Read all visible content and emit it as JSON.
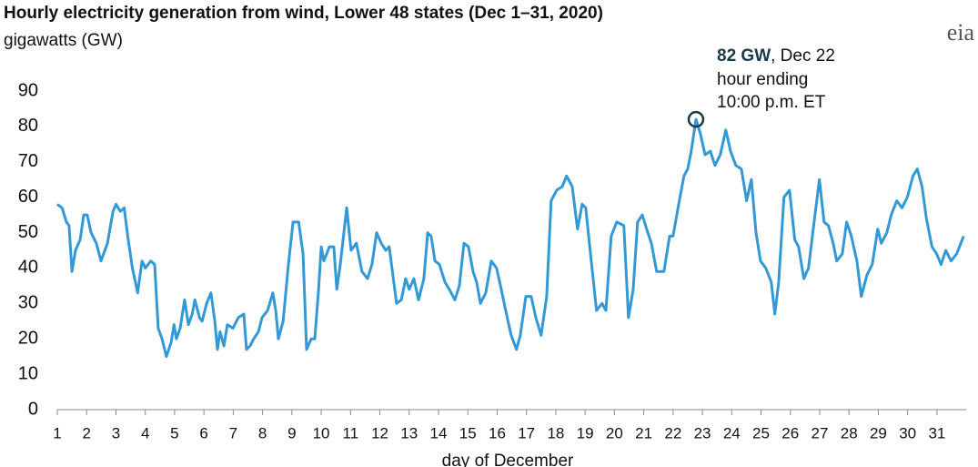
{
  "chart_data": {
    "type": "line",
    "title": "Hourly electricity generation from wind, Lower 48 states (Dec 1–31, 2020)",
    "y_axis_label": "gigawatts (GW)",
    "x_axis_label": "day of December",
    "logo": "eia",
    "color": "#3399d6",
    "xlim": [
      1,
      32
    ],
    "xticks": [
      1,
      2,
      3,
      4,
      5,
      6,
      7,
      8,
      9,
      10,
      11,
      12,
      13,
      14,
      15,
      16,
      17,
      18,
      19,
      20,
      21,
      22,
      23,
      24,
      25,
      26,
      27,
      28,
      29,
      30,
      31
    ],
    "ylim": [
      0,
      90
    ],
    "yticks": [
      0,
      10,
      20,
      30,
      40,
      50,
      60,
      70,
      80,
      90
    ],
    "annotation": {
      "x": 22.78,
      "y": 82,
      "label": "82 GW",
      "text": ", Dec 22",
      "lines": [
        "hour ending",
        "10:00 p.m. ET"
      ]
    },
    "x": [
      1.0,
      1.16,
      1.31,
      1.4,
      1.5,
      1.62,
      1.78,
      1.9,
      2.02,
      2.15,
      2.33,
      2.49,
      2.71,
      2.9,
      3.0,
      3.15,
      3.28,
      3.4,
      3.56,
      3.74,
      3.89,
      4.0,
      4.19,
      4.32,
      4.44,
      4.57,
      4.72,
      4.88,
      4.98,
      5.06,
      5.19,
      5.34,
      5.47,
      5.6,
      5.69,
      5.85,
      5.94,
      6.09,
      6.24,
      6.37,
      6.46,
      6.55,
      6.68,
      6.8,
      6.99,
      7.17,
      7.36,
      7.45,
      7.57,
      7.7,
      7.86,
      7.98,
      8.17,
      8.35,
      8.45,
      8.54,
      8.7,
      8.88,
      9.04,
      9.23,
      9.38,
      9.5,
      9.66,
      9.78,
      9.91,
      10.0,
      10.09,
      10.28,
      10.43,
      10.53,
      10.65,
      10.87,
      11.02,
      11.2,
      11.39,
      11.58,
      11.73,
      11.89,
      12.05,
      12.2,
      12.32,
      12.57,
      12.73,
      12.88,
      13.0,
      13.16,
      13.32,
      13.5,
      13.63,
      13.75,
      13.88,
      14.03,
      14.22,
      14.37,
      14.56,
      14.71,
      14.87,
      15.02,
      15.18,
      15.3,
      15.43,
      15.61,
      15.8,
      15.98,
      16.14,
      16.29,
      16.48,
      16.66,
      16.79,
      16.98,
      17.16,
      17.32,
      17.5,
      17.69,
      17.84,
      18.03,
      18.22,
      18.37,
      18.56,
      18.74,
      18.9,
      19.02,
      19.21,
      19.39,
      19.58,
      19.71,
      19.89,
      20.08,
      20.32,
      20.48,
      20.64,
      20.79,
      20.95,
      21.1,
      21.26,
      21.44,
      21.69,
      21.88,
      22.0,
      22.19,
      22.37,
      22.5,
      22.62,
      22.78,
      22.93,
      23.09,
      23.27,
      23.43,
      23.61,
      23.8,
      23.96,
      24.14,
      24.33,
      24.51,
      24.67,
      24.83,
      24.98,
      25.16,
      25.35,
      25.47,
      25.6,
      25.78,
      25.97,
      26.15,
      26.28,
      26.46,
      26.62,
      26.84,
      26.99,
      27.15,
      27.3,
      27.46,
      27.58,
      27.77,
      27.92,
      28.08,
      28.27,
      28.42,
      28.61,
      28.79,
      28.98,
      29.1,
      29.29,
      29.44,
      29.63,
      29.81,
      29.99,
      30.18,
      30.33,
      30.49,
      30.64,
      30.83,
      30.99,
      31.14,
      31.3,
      31.48,
      31.67,
      31.91
    ],
    "values": [
      58,
      57,
      53,
      52,
      39,
      45,
      48,
      55,
      55,
      50,
      47,
      42,
      47,
      56,
      58,
      56,
      57,
      49,
      40,
      33,
      42,
      40,
      42,
      41,
      23,
      20,
      15,
      19,
      24,
      20,
      23,
      31,
      24,
      27,
      31,
      26,
      25,
      30,
      33,
      25,
      17,
      22,
      18,
      24,
      23,
      26,
      27,
      17,
      18,
      20,
      22,
      26,
      28,
      33,
      28,
      20,
      25,
      41,
      53,
      53,
      44,
      17,
      20,
      20,
      34,
      46,
      42,
      46,
      46,
      34,
      41,
      57,
      45,
      47,
      39,
      37,
      41,
      50,
      47,
      45,
      46,
      30,
      31,
      37,
      34,
      37,
      31,
      37,
      50,
      49,
      42,
      41,
      36,
      34,
      31,
      35,
      47,
      46,
      39,
      36,
      30,
      33,
      42,
      40,
      34,
      28,
      21,
      17,
      21,
      32,
      32,
      26,
      21,
      32,
      59,
      62,
      63,
      66,
      63,
      51,
      58,
      57,
      42,
      28,
      30,
      28,
      49,
      53,
      52,
      26,
      34,
      53,
      55,
      51,
      47,
      39,
      39,
      49,
      49,
      58,
      66,
      68,
      73,
      82,
      78,
      72,
      73,
      69,
      72,
      79,
      73,
      69,
      68,
      59,
      65,
      50,
      42,
      40,
      36,
      27,
      36,
      60,
      62,
      48,
      46,
      37,
      40,
      55,
      65,
      53,
      52,
      47,
      42,
      44,
      53,
      49,
      42,
      32,
      38,
      41,
      51,
      47,
      50,
      55,
      59,
      57,
      60,
      66,
      68,
      63,
      54,
      46,
      44,
      41,
      45,
      42,
      44,
      49
    ]
  }
}
